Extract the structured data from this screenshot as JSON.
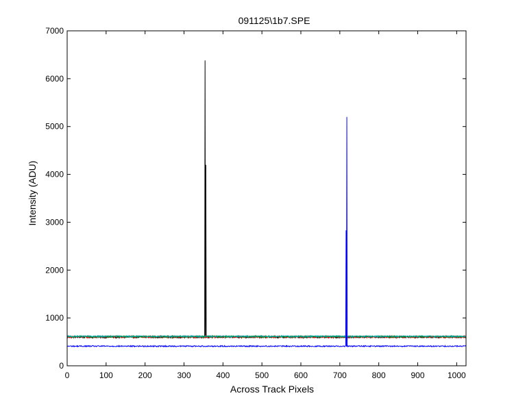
{
  "chart_data": {
    "type": "line",
    "title": "091125\\1b7.SPE",
    "xlabel": "Across Track Pixels",
    "ylabel": "Intensity (ADU)",
    "xlim": [
      0,
      1024
    ],
    "ylim": [
      0,
      7000
    ],
    "x_ticks": [
      0,
      100,
      200,
      300,
      400,
      500,
      600,
      700,
      800,
      900,
      1000
    ],
    "y_ticks": [
      0,
      1000,
      2000,
      3000,
      4000,
      5000,
      6000,
      7000
    ],
    "grid": false,
    "legend": "none",
    "series": [
      {
        "color": "#000000",
        "baseline": 600,
        "noise": 18,
        "spikes": [
          {
            "x": 354,
            "y": 6380
          },
          {
            "x": 356,
            "y": 4200
          },
          {
            "x": 718,
            "y": 540
          }
        ]
      },
      {
        "color": "#ff0000",
        "baseline": 605,
        "noise": 18,
        "spikes": []
      },
      {
        "color": "#008000",
        "baseline": 610,
        "noise": 16,
        "spikes": []
      },
      {
        "color": "#00aaaa",
        "baseline": 615,
        "noise": 14,
        "spikes": []
      },
      {
        "color": "#0000ff",
        "baseline": 410,
        "noise": 12,
        "spikes": [
          {
            "x": 716,
            "y": 2830
          },
          {
            "x": 718,
            "y": 5200
          }
        ]
      }
    ]
  }
}
